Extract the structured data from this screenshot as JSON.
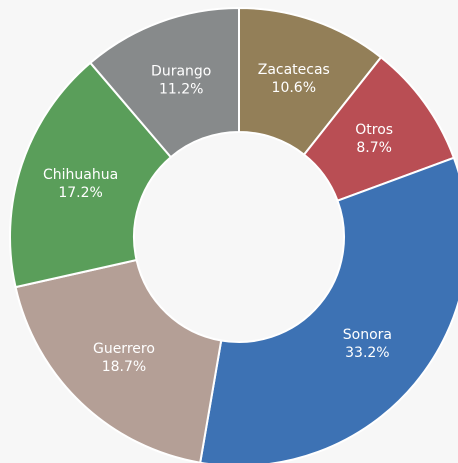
{
  "chart_data": {
    "type": "donut",
    "categories": [
      "Zacatecas",
      "Otros",
      "Sonora",
      "Guerrero",
      "Chihuahua",
      "Durango"
    ],
    "values": [
      10.6,
      8.7,
      33.2,
      18.7,
      17.2,
      11.2
    ],
    "value_labels": [
      "10.6%",
      "8.7%",
      "33.2%",
      "18.7%",
      "17.2%",
      "11.2%"
    ],
    "colors": [
      "#937f58",
      "#b94e54",
      "#3d72b4",
      "#b49f96",
      "#5a9e5a",
      "#878a8b"
    ]
  }
}
